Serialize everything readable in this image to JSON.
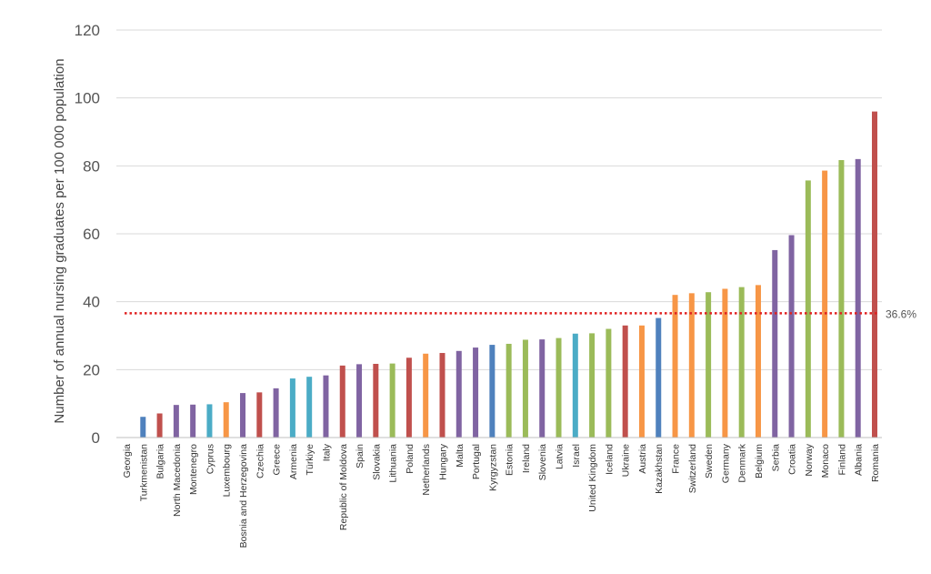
{
  "chart_data": {
    "type": "bar",
    "title": "",
    "xlabel": "",
    "ylabel": "Number of annual nursing graduates per 100 000 population",
    "ylim": [
      0,
      120
    ],
    "yticks": [
      0,
      20,
      40,
      60,
      80,
      100,
      120
    ],
    "grid": "horizontal",
    "legend": "none",
    "reference_line": {
      "value": 36.6,
      "label": "36.6%",
      "color": "#e02020",
      "style": "dotted"
    },
    "categories": [
      "Georgia",
      "Turkmenistan",
      "Bulgaria",
      "North Macedonia",
      "Montenegro",
      "Cyprus",
      "Luxembourg",
      "Bosnia and Herzegovina",
      "Czechia",
      "Greece",
      "Armenia",
      "Türkiye",
      "Italy",
      "Republic of Moldova",
      "Spain",
      "Slovakia",
      "Lithuania",
      "Poland",
      "Netherlands",
      "Hungary",
      "Malta",
      "Portugal",
      "Kyrgyzstan",
      "Estonia",
      "Ireland",
      "Slovenia",
      "Latvia",
      "Israel",
      "United Kingdom",
      "Iceland",
      "Ukraine",
      "Austria",
      "Kazakhstan",
      "France",
      "Switzerland",
      "Sweden",
      "Germany",
      "Denmark",
      "Belgium",
      "Serbia",
      "Croatia",
      "Norway",
      "Monaco",
      "Finland",
      "Albania",
      "Romania"
    ],
    "values": [
      0,
      6.1,
      7.1,
      9.6,
      9.7,
      9.8,
      10.4,
      13.1,
      13.3,
      14.5,
      17.4,
      17.9,
      18.3,
      21.2,
      21.6,
      21.7,
      21.8,
      23.5,
      24.7,
      24.9,
      25.5,
      26.5,
      27.3,
      27.6,
      28.8,
      28.9,
      29.3,
      30.6,
      30.7,
      32.0,
      33.0,
      33.0,
      35.2,
      42.0,
      42.5,
      42.8,
      43.8,
      44.3,
      44.9,
      55.2,
      59.6,
      75.7,
      78.6,
      81.7,
      82.0,
      96.0
    ],
    "colors": [
      "#8064a2",
      "#4f81bd",
      "#c0504d",
      "#8064a2",
      "#8064a2",
      "#4bacc6",
      "#f79646",
      "#8064a2",
      "#c0504d",
      "#8064a2",
      "#4bacc6",
      "#4bacc6",
      "#8064a2",
      "#c0504d",
      "#8064a2",
      "#c0504d",
      "#9bbb59",
      "#c0504d",
      "#f79646",
      "#c0504d",
      "#8064a2",
      "#8064a2",
      "#4f81bd",
      "#9bbb59",
      "#9bbb59",
      "#8064a2",
      "#9bbb59",
      "#4bacc6",
      "#9bbb59",
      "#9bbb59",
      "#c0504d",
      "#f79646",
      "#4f81bd",
      "#f79646",
      "#f79646",
      "#9bbb59",
      "#f79646",
      "#9bbb59",
      "#f79646",
      "#8064a2",
      "#8064a2",
      "#9bbb59",
      "#f79646",
      "#9bbb59",
      "#8064a2",
      "#c0504d"
    ]
  }
}
